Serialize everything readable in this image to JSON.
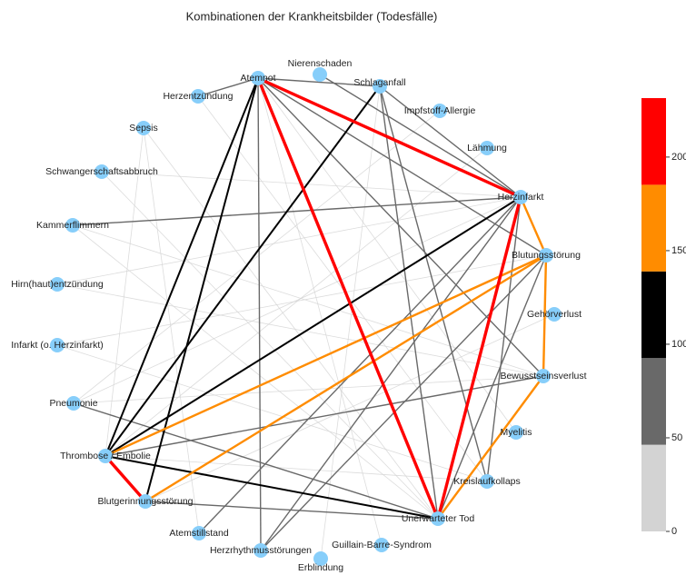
{
  "title": "Kombinationen der Krankheitsbilder (Todesfälle)",
  "nodes": [
    {
      "label": "Atemnot"
    },
    {
      "label": "Nierenschaden"
    },
    {
      "label": "Schlaganfall"
    },
    {
      "label": "Impfstoff-Allergie"
    },
    {
      "label": "Lähmung"
    },
    {
      "label": "Herzinfarkt"
    },
    {
      "label": "Blutungsstörung"
    },
    {
      "label": "Gehörverlust"
    },
    {
      "label": "Bewusstseinsverlust"
    },
    {
      "label": "Myelitis"
    },
    {
      "label": "Kreislaufkollaps"
    },
    {
      "label": "Unerwarteter Tod"
    },
    {
      "label": "Guillain-Barre-Syndrom"
    },
    {
      "label": "Erblindung"
    },
    {
      "label": "Herzrhythmusstörungen"
    },
    {
      "label": "Atemstillstand"
    },
    {
      "label": "Blutgerinnungsstörung"
    },
    {
      "label": "Thrombose / Embolie"
    },
    {
      "label": "Pneumonie"
    },
    {
      "label": "Infarkt (o. Herzinfarkt)"
    },
    {
      "label": "Hirn(haut)entzündung"
    },
    {
      "label": "Kammerflimmern"
    },
    {
      "label": "Schwangerschaftsabbruch"
    },
    {
      "label": "Sepsis"
    },
    {
      "label": "Herzentzündung"
    }
  ],
  "edges": [
    {
      "source": "Atemnot",
      "target": "Herzinfarkt",
      "weight": 220
    },
    {
      "source": "Atemnot",
      "target": "Unerwarteter Tod",
      "weight": 225
    },
    {
      "source": "Herzinfarkt",
      "target": "Unerwarteter Tod",
      "weight": 215
    },
    {
      "source": "Thrombose / Embolie",
      "target": "Blutgerinnungsstörung",
      "weight": 205
    },
    {
      "source": "Blutungsstörung",
      "target": "Thrombose / Embolie",
      "weight": 165
    },
    {
      "source": "Blutungsstörung",
      "target": "Blutgerinnungsstörung",
      "weight": 160
    },
    {
      "source": "Blutungsstörung",
      "target": "Bewusstseinsverlust",
      "weight": 160
    },
    {
      "source": "Herzinfarkt",
      "target": "Blutungsstörung",
      "weight": 160
    },
    {
      "source": "Bewusstseinsverlust",
      "target": "Unerwarteter Tod",
      "weight": 165
    },
    {
      "source": "Atemnot",
      "target": "Thrombose / Embolie",
      "weight": 125
    },
    {
      "source": "Atemnot",
      "target": "Blutgerinnungsstörung",
      "weight": 115
    },
    {
      "source": "Schlaganfall",
      "target": "Thrombose / Embolie",
      "weight": 120
    },
    {
      "source": "Herzinfarkt",
      "target": "Thrombose / Embolie",
      "weight": 130
    },
    {
      "source": "Thrombose / Embolie",
      "target": "Unerwarteter Tod",
      "weight": 120
    },
    {
      "source": "Atemnot",
      "target": "Herzrhythmusstörungen",
      "weight": 70
    },
    {
      "source": "Atemnot",
      "target": "Schlaganfall",
      "weight": 70
    },
    {
      "source": "Atemnot",
      "target": "Bewusstseinsverlust",
      "weight": 75
    },
    {
      "source": "Atemnot",
      "target": "Blutungsstörung",
      "weight": 70
    },
    {
      "source": "Schlaganfall",
      "target": "Unerwarteter Tod",
      "weight": 75
    },
    {
      "source": "Schlaganfall",
      "target": "Kreislaufkollaps",
      "weight": 70
    },
    {
      "source": "Schlaganfall",
      "target": "Herzinfarkt",
      "weight": 70
    },
    {
      "source": "Herzinfarkt",
      "target": "Kreislaufkollaps",
      "weight": 80
    },
    {
      "source": "Herzinfarkt",
      "target": "Kammerflimmern",
      "weight": 60
    },
    {
      "source": "Herzinfarkt",
      "target": "Herzrhythmusstörungen",
      "weight": 65
    },
    {
      "source": "Nierenschaden",
      "target": "Herzinfarkt",
      "weight": 60
    },
    {
      "source": "Blutgerinnungsstörung",
      "target": "Unerwarteter Tod",
      "weight": 70
    },
    {
      "source": "Bewusstseinsverlust",
      "target": "Thrombose / Embolie",
      "weight": 60
    },
    {
      "source": "Pneumonie",
      "target": "Unerwarteter Tod",
      "weight": 60
    },
    {
      "source": "Herzentzündung",
      "target": "Atemnot",
      "weight": 55
    },
    {
      "source": "Blutungsstörung",
      "target": "Herzrhythmusstörungen",
      "weight": 65
    },
    {
      "source": "Blutungsstörung",
      "target": "Unerwarteter Tod",
      "weight": 65
    },
    {
      "source": "Atemstillstand",
      "target": "Herzinfarkt",
      "weight": 60
    },
    {
      "source": "Sepsis",
      "target": "Thrombose / Embolie",
      "weight": 25
    },
    {
      "source": "Pneumonie",
      "target": "Herzinfarkt",
      "weight": 20
    },
    {
      "source": "Kammerflimmern",
      "target": "Unerwarteter Tod",
      "weight": 20
    },
    {
      "source": "Schwangerschaftsabbruch",
      "target": "Herzinfarkt",
      "weight": 15
    },
    {
      "source": "Infarkt (o. Herzinfarkt)",
      "target": "Blutungsstörung",
      "weight": 15
    },
    {
      "source": "Hirn(haut)entzündung",
      "target": "Bewusstseinsverlust",
      "weight": 15
    },
    {
      "source": "Sepsis",
      "target": "Unerwarteter Tod",
      "weight": 20
    },
    {
      "source": "Herzentzündung",
      "target": "Kreislaufkollaps",
      "weight": 15
    },
    {
      "source": "Lähmung",
      "target": "Thrombose / Embolie",
      "weight": 20
    },
    {
      "source": "Myelitis",
      "target": "Atemnot",
      "weight": 15
    },
    {
      "source": "Impfstoff-Allergie",
      "target": "Pneumonie",
      "weight": 15
    },
    {
      "source": "Gehörverlust",
      "target": "Blutgerinnungsstörung",
      "weight": 15
    },
    {
      "source": "Guillain-Barre-Syndrom",
      "target": "Atemnot",
      "weight": 15
    },
    {
      "source": "Erblindung",
      "target": "Schlaganfall",
      "weight": 15
    },
    {
      "source": "Atemstillstand",
      "target": "Sepsis",
      "weight": 15
    },
    {
      "source": "Kammerflimmern",
      "target": "Bewusstseinsverlust",
      "weight": 15
    },
    {
      "source": "Schwangerschaftsabbruch",
      "target": "Unerwarteter Tod",
      "weight": 15
    },
    {
      "source": "Hirn(haut)entzündung",
      "target": "Herzinfarkt",
      "weight": 15
    },
    {
      "source": "Infarkt (o. Herzinfarkt)",
      "target": "Kreislaufkollaps",
      "weight": 15
    },
    {
      "source": "Pneumonie",
      "target": "Bewusstseinsverlust",
      "weight": 45
    },
    {
      "source": "Thrombose / Embolie",
      "target": "Kreislaufkollaps",
      "weight": 45
    }
  ],
  "colorbar": {
    "lim": [
      0,
      231.5
    ],
    "bounds": [
      0,
      46.3,
      92.6,
      138.9,
      185.2,
      231.5
    ],
    "colors": [
      "#d3d3d3",
      "#696969",
      "#000000",
      "#ff8c00",
      "#ff0000"
    ],
    "ticks": [
      0,
      50,
      100,
      150,
      200
    ]
  }
}
